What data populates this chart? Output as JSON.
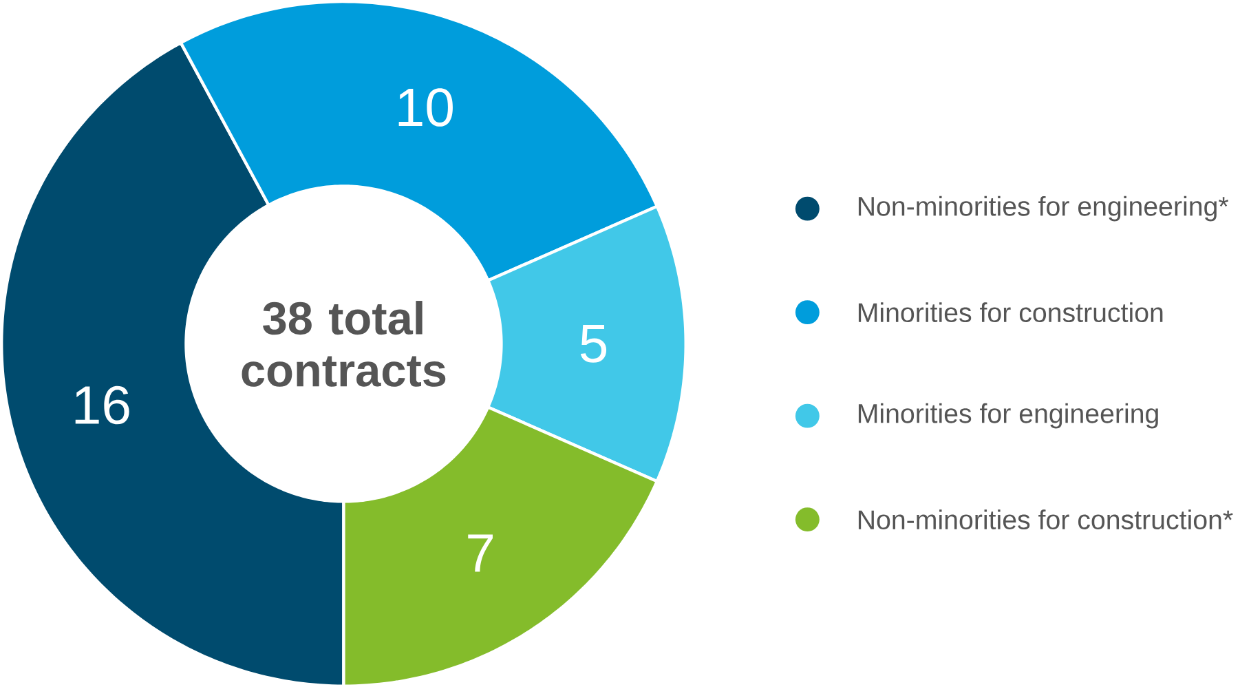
{
  "chart_data": {
    "type": "donut",
    "title": "38 total contracts",
    "categories": [
      "Non-minorities for engineering*",
      "Minorities for construction",
      "Minorities for engineering",
      "Non-minorities for construction*"
    ],
    "values": [
      16,
      10,
      5,
      7
    ],
    "colors": [
      "#004b6e",
      "#009ddc",
      "#41c8e8",
      "#84bc2b"
    ],
    "data_labels": true,
    "legend": "right"
  }
}
